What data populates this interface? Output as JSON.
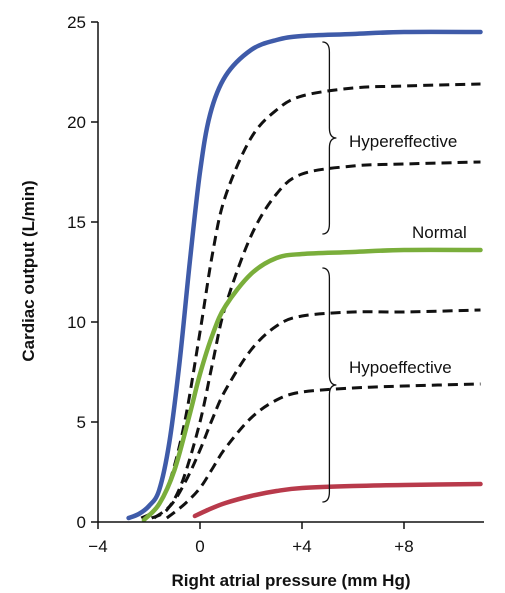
{
  "chart_data": {
    "type": "line",
    "xlabel": "Right atrial pressure (mm Hg)",
    "ylabel": "Cardiac output (L/min)",
    "xlim": [
      -4,
      11.2
    ],
    "ylim": [
      0,
      25
    ],
    "x_ticks": [
      {
        "value": -4,
        "label": "−4"
      },
      {
        "value": 0,
        "label": "0"
      },
      {
        "value": 4,
        "label": "+4"
      },
      {
        "value": 8,
        "label": "+8"
      }
    ],
    "y_ticks": [
      {
        "value": 0,
        "label": "0"
      },
      {
        "value": 5,
        "label": "5"
      },
      {
        "value": 10,
        "label": "10"
      },
      {
        "value": 15,
        "label": "15"
      },
      {
        "value": 20,
        "label": "20"
      },
      {
        "value": 25,
        "label": "25"
      }
    ],
    "grid": false,
    "annotations": {
      "normal": "Normal",
      "hypereffective": "Hypereffective",
      "hypoeffective": "Hypoeffective"
    },
    "series": [
      {
        "color": "#3f5ba9",
        "dash": false,
        "points": [
          [
            -2.8,
            0.2
          ],
          [
            -2.4,
            0.4
          ],
          [
            -2.0,
            0.8
          ],
          [
            -1.6,
            1.6
          ],
          [
            -1.2,
            4.0
          ],
          [
            -0.8,
            8.0
          ],
          [
            -0.4,
            13.0
          ],
          [
            0.0,
            17.5
          ],
          [
            0.4,
            20.4
          ],
          [
            1.0,
            22.3
          ],
          [
            2.0,
            23.6
          ],
          [
            3.0,
            24.1
          ],
          [
            4.0,
            24.3
          ],
          [
            6.0,
            24.4
          ],
          [
            8.0,
            24.5
          ],
          [
            11.0,
            24.5
          ]
        ]
      },
      {
        "color": "#111111",
        "dash": true,
        "points": [
          [
            -2.3,
            0.2
          ],
          [
            -1.8,
            0.6
          ],
          [
            -1.2,
            2.0
          ],
          [
            -0.6,
            5.0
          ],
          [
            0.0,
            9.5
          ],
          [
            0.5,
            13.5
          ],
          [
            1.0,
            16.3
          ],
          [
            2.0,
            19.2
          ],
          [
            3.0,
            20.6
          ],
          [
            4.0,
            21.3
          ],
          [
            6.0,
            21.7
          ],
          [
            8.0,
            21.8
          ],
          [
            11.0,
            21.9
          ]
        ]
      },
      {
        "color": "#111111",
        "dash": true,
        "points": [
          [
            -1.9,
            0.2
          ],
          [
            -1.3,
            0.6
          ],
          [
            -0.7,
            2.0
          ],
          [
            0.0,
            5.0
          ],
          [
            0.5,
            8.0
          ],
          [
            1.0,
            10.8
          ],
          [
            2.0,
            14.3
          ],
          [
            3.0,
            16.4
          ],
          [
            4.0,
            17.4
          ],
          [
            6.0,
            17.8
          ],
          [
            8.0,
            17.9
          ],
          [
            11.0,
            18.0
          ]
        ]
      },
      {
        "color": "#7aae3b",
        "dash": false,
        "points": [
          [
            -2.2,
            0.1
          ],
          [
            -1.6,
            0.9
          ],
          [
            -1.0,
            2.6
          ],
          [
            -0.4,
            5.4
          ],
          [
            0.0,
            7.4
          ],
          [
            0.5,
            9.4
          ],
          [
            1.0,
            10.8
          ],
          [
            2.0,
            12.4
          ],
          [
            3.0,
            13.2
          ],
          [
            4.0,
            13.4
          ],
          [
            6.0,
            13.5
          ],
          [
            8.0,
            13.6
          ],
          [
            11.0,
            13.6
          ]
        ]
      },
      {
        "color": "#111111",
        "dash": true,
        "points": [
          [
            -1.8,
            0.2
          ],
          [
            -1.1,
            0.9
          ],
          [
            -0.5,
            2.2
          ],
          [
            0.0,
            3.6
          ],
          [
            0.5,
            5.2
          ],
          [
            1.0,
            6.6
          ],
          [
            2.0,
            8.6
          ],
          [
            3.0,
            9.8
          ],
          [
            4.0,
            10.3
          ],
          [
            6.0,
            10.5
          ],
          [
            8.0,
            10.5
          ],
          [
            11.0,
            10.6
          ]
        ]
      },
      {
        "color": "#111111",
        "dash": true,
        "points": [
          [
            -1.3,
            0.2
          ],
          [
            -0.6,
            0.9
          ],
          [
            0.0,
            1.7
          ],
          [
            0.5,
            2.7
          ],
          [
            1.0,
            3.7
          ],
          [
            2.0,
            5.2
          ],
          [
            3.0,
            6.1
          ],
          [
            4.0,
            6.5
          ],
          [
            6.0,
            6.7
          ],
          [
            8.0,
            6.8
          ],
          [
            11.0,
            6.9
          ]
        ]
      },
      {
        "color": "#b83a4b",
        "dash": false,
        "points": [
          [
            -0.2,
            0.3
          ],
          [
            0.3,
            0.6
          ],
          [
            1.0,
            0.95
          ],
          [
            2.0,
            1.3
          ],
          [
            3.0,
            1.55
          ],
          [
            4.0,
            1.7
          ],
          [
            6.0,
            1.8
          ],
          [
            8.0,
            1.85
          ],
          [
            11.0,
            1.9
          ]
        ]
      }
    ],
    "brackets": [
      {
        "group": "hypereffective",
        "from": 24.0,
        "to": 14.4,
        "x": 4.8
      },
      {
        "group": "hypoeffective",
        "from": 12.7,
        "to": 1.0,
        "x": 4.8
      }
    ]
  }
}
